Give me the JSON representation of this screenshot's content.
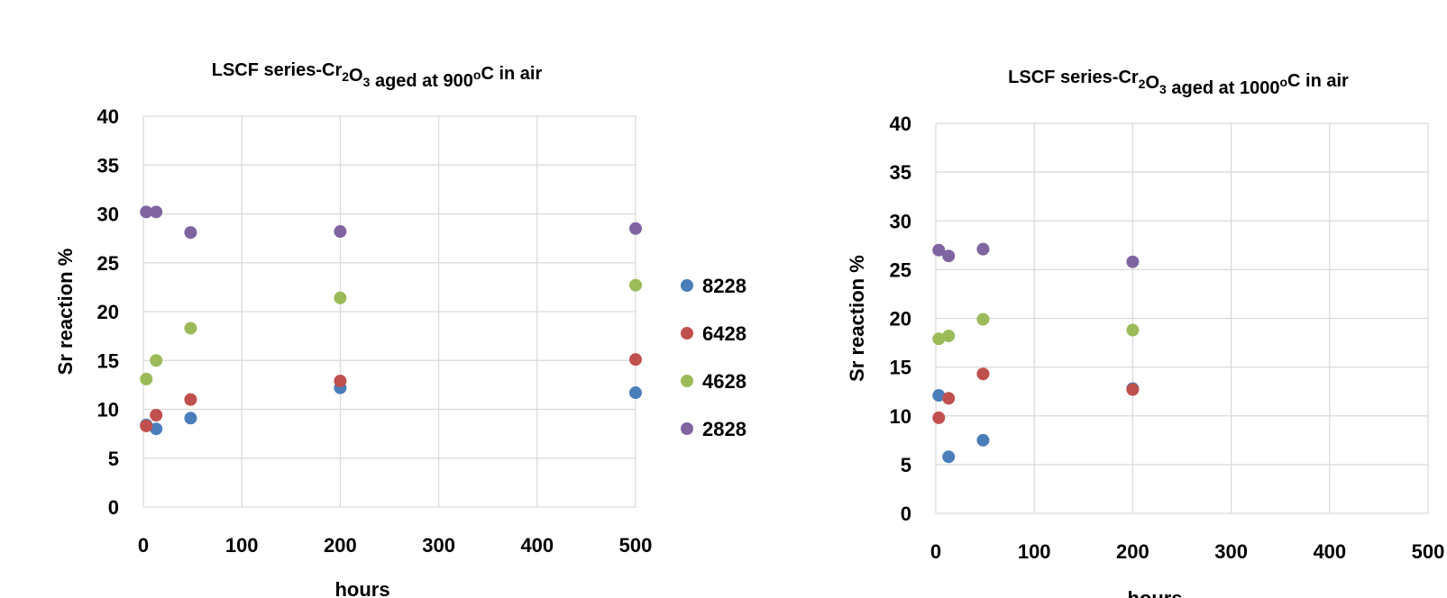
{
  "colors": {
    "8228": "#4a7ebb",
    "6428": "#c0504d",
    "4628": "#9bbb59",
    "2828": "#8064a2",
    "grid": "#d9d9d9"
  },
  "chart_data": [
    {
      "type": "scatter",
      "title": {
        "prefix": "LSCF series-Cr",
        "sub1": "2",
        "mid": "O",
        "sub2": "3",
        "suffix": " aged at 900",
        "sup": "o",
        "tail": "C in air"
      },
      "xlabel": "hours",
      "ylabel": "Sr reaction %",
      "xlim": [
        0,
        500
      ],
      "ylim": [
        0,
        40
      ],
      "xticks": [
        0,
        100,
        200,
        300,
        400,
        500
      ],
      "yticks": [
        0,
        5,
        10,
        15,
        20,
        25,
        30,
        35,
        40
      ],
      "grid": true,
      "legend_position": "right",
      "series": [
        {
          "name": "8228",
          "x": [
            3,
            13,
            48,
            200,
            500
          ],
          "y": [
            8.4,
            8.0,
            9.1,
            12.2,
            11.7
          ]
        },
        {
          "name": "6428",
          "x": [
            3,
            13,
            48,
            200,
            500
          ],
          "y": [
            8.3,
            9.4,
            11.0,
            12.9,
            15.1
          ]
        },
        {
          "name": "4628",
          "x": [
            3,
            13,
            48,
            200,
            500
          ],
          "y": [
            13.1,
            15.0,
            18.3,
            21.4,
            22.7
          ]
        },
        {
          "name": "2828",
          "x": [
            3,
            13,
            48,
            200,
            500
          ],
          "y": [
            30.2,
            30.2,
            28.1,
            28.2,
            28.5
          ]
        }
      ]
    },
    {
      "type": "scatter",
      "title": {
        "prefix": "LSCF series-Cr",
        "sub1": "2",
        "mid": "O",
        "sub2": "3",
        "suffix": " aged at 1000",
        "sup": "o",
        "tail": "C in air"
      },
      "xlabel": "hours",
      "ylabel": "Sr reaction %",
      "xlim": [
        0,
        500
      ],
      "ylim": [
        0,
        40
      ],
      "xticks": [
        0,
        100,
        200,
        300,
        400,
        500
      ],
      "yticks": [
        0,
        5,
        10,
        15,
        20,
        25,
        30,
        35,
        40
      ],
      "grid": true,
      "series": [
        {
          "name": "8228",
          "x": [
            3,
            13,
            48,
            200
          ],
          "y": [
            12.1,
            5.8,
            7.5,
            12.8
          ]
        },
        {
          "name": "6428",
          "x": [
            3,
            13,
            48,
            200
          ],
          "y": [
            9.8,
            11.8,
            14.3,
            12.7
          ]
        },
        {
          "name": "4628",
          "x": [
            3,
            13,
            48,
            200
          ],
          "y": [
            17.9,
            18.2,
            19.9,
            18.8
          ]
        },
        {
          "name": "2828",
          "x": [
            3,
            13,
            48,
            200
          ],
          "y": [
            27.0,
            26.4,
            27.1,
            25.8
          ]
        }
      ]
    }
  ]
}
